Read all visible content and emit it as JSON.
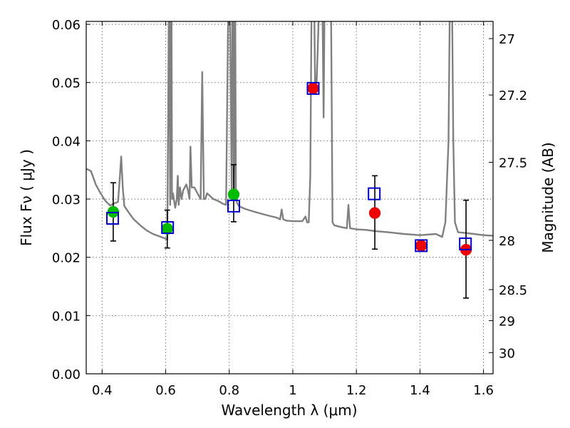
{
  "chart_data": {
    "type": "scatter",
    "title": "",
    "xlabel": "Wavelength  λ (μm)",
    "ylabel": "Flux  Fν  ( μJy )",
    "y2label": "Magnitude (AB)",
    "xlim": [
      0.35,
      1.63
    ],
    "ylim": [
      0.0,
      0.0605
    ],
    "grid": true,
    "legend": "none",
    "x_ticks": [
      {
        "v": 0.4,
        "label": "0.4"
      },
      {
        "v": 0.6,
        "label": "0.6"
      },
      {
        "v": 0.8,
        "label": "0.8"
      },
      {
        "v": 1.0,
        "label": "1"
      },
      {
        "v": 1.2,
        "label": "1.2"
      },
      {
        "v": 1.4,
        "label": "1.4"
      },
      {
        "v": 1.6,
        "label": "1.6"
      }
    ],
    "y_ticks": [
      {
        "v": 0.0,
        "label": "0.00"
      },
      {
        "v": 0.01,
        "label": "0.01"
      },
      {
        "v": 0.02,
        "label": "0.02"
      },
      {
        "v": 0.03,
        "label": "0.03"
      },
      {
        "v": 0.04,
        "label": "0.04"
      },
      {
        "v": 0.05,
        "label": "0.05"
      },
      {
        "v": 0.06,
        "label": "0.06"
      }
    ],
    "y2_ticks": [
      {
        "mag": 27,
        "label": "27"
      },
      {
        "mag": 27.2,
        "label": "27.2"
      },
      {
        "mag": 27.5,
        "label": "27.5"
      },
      {
        "mag": 28,
        "label": "28"
      },
      {
        "mag": 28.5,
        "label": "28.5"
      },
      {
        "mag": 29,
        "label": "29"
      },
      {
        "mag": 30,
        "label": "30"
      }
    ],
    "colors": {
      "model": "#808080",
      "model_points": "#0000cc",
      "optical_photometry": "#00bb00",
      "ir_photometry": "#ee0000",
      "error_bars": "#000000",
      "grid": "#555555"
    },
    "model_spectrum": {
      "name": "",
      "x": [
        0.35,
        0.365,
        0.38,
        0.395,
        0.41,
        0.425,
        0.44,
        0.45,
        0.455,
        0.46,
        0.465,
        0.47,
        0.48,
        0.49,
        0.5,
        0.52,
        0.54,
        0.56,
        0.58,
        0.6,
        0.605,
        0.608,
        0.611,
        0.614,
        0.617,
        0.62,
        0.623,
        0.63,
        0.635,
        0.638,
        0.641,
        0.645,
        0.65,
        0.655,
        0.66,
        0.665,
        0.67,
        0.675,
        0.678,
        0.682,
        0.69,
        0.7,
        0.71,
        0.715,
        0.72,
        0.725,
        0.73,
        0.74,
        0.75,
        0.76,
        0.77,
        0.78,
        0.79,
        0.8,
        0.808,
        0.811,
        0.815,
        0.818,
        0.821,
        0.825,
        0.83,
        0.85,
        0.88,
        0.9,
        0.92,
        0.95,
        0.96,
        0.965,
        0.97,
        0.98,
        1.0,
        1.03,
        1.04,
        1.045,
        1.05,
        1.055,
        1.06,
        1.065,
        1.07,
        1.075,
        1.085,
        1.093,
        1.097,
        1.1,
        1.12,
        1.125,
        1.13,
        1.15,
        1.17,
        1.175,
        1.18,
        1.2,
        1.23,
        1.26,
        1.3,
        1.35,
        1.4,
        1.45,
        1.47,
        1.48,
        1.49,
        1.495,
        1.5,
        1.505,
        1.51,
        1.52,
        1.54,
        1.57,
        1.6,
        1.63
      ],
      "y": [
        0.0352,
        0.0348,
        0.0325,
        0.031,
        0.0297,
        0.0289,
        0.0293,
        0.0295,
        0.033,
        0.0373,
        0.032,
        0.0288,
        0.028,
        0.0272,
        0.0265,
        0.0255,
        0.0246,
        0.024,
        0.0236,
        0.0232,
        0.023,
        0.045,
        0.074,
        0.029,
        0.095,
        0.03,
        0.031,
        0.0285,
        0.03,
        0.034,
        0.029,
        0.032,
        0.03,
        0.0315,
        0.032,
        0.0325,
        0.0315,
        0.03,
        0.039,
        0.032,
        0.032,
        0.031,
        0.03,
        0.0518,
        0.03,
        0.03,
        0.031,
        0.0305,
        0.03,
        0.0298,
        0.0295,
        0.0292,
        0.029,
        0.078,
        0.03,
        0.075,
        0.03,
        0.075,
        0.03,
        0.0293,
        0.0288,
        0.0283,
        0.0278,
        0.0275,
        0.0272,
        0.0268,
        0.0265,
        0.0282,
        0.0265,
        0.0263,
        0.0262,
        0.0262,
        0.027,
        0.026,
        0.026,
        0.034,
        0.07,
        0.075,
        0.05,
        0.05,
        0.067,
        0.065,
        0.044,
        0.065,
        0.065,
        0.026,
        0.0255,
        0.0252,
        0.025,
        0.029,
        0.025,
        0.0248,
        0.0247,
        0.0245,
        0.0243,
        0.024,
        0.0238,
        0.024,
        0.0235,
        0.026,
        0.04,
        0.07,
        0.07,
        0.04,
        0.026,
        0.0243,
        0.0242,
        0.024,
        0.0238,
        0.0237
      ]
    },
    "series": [
      {
        "name": "",
        "marker": "open-square",
        "x": [
          0.433,
          0.606,
          0.814,
          1.064,
          1.256,
          1.404,
          1.543
        ],
        "y": [
          0.0267,
          0.0251,
          0.0288,
          0.049,
          0.0309,
          0.022,
          0.0223
        ]
      },
      {
        "name": "",
        "marker": "filled-circle-green",
        "x": [
          0.435,
          0.605,
          0.814
        ],
        "y": [
          0.0278,
          0.0249,
          0.0308
        ],
        "yerr_low": [
          0.0228,
          0.0216,
          0.0261
        ],
        "yerr_high": [
          0.0328,
          0.0281,
          0.0359
        ]
      },
      {
        "name": "",
        "marker": "filled-circle-red",
        "x": [
          1.064,
          1.258,
          1.404,
          1.545
        ],
        "y": [
          0.049,
          0.0276,
          0.022,
          0.0213
        ],
        "yerr_low": [
          0.049,
          0.0214,
          0.022,
          0.013
        ],
        "yerr_high": [
          0.049,
          0.034,
          0.022,
          0.0298
        ]
      }
    ]
  }
}
